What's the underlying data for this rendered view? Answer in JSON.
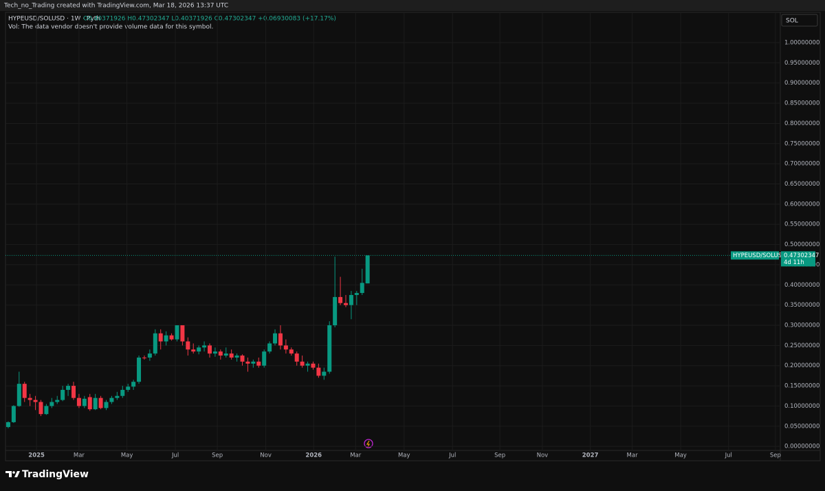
{
  "header": {
    "credit": "Tech_no_Trading created with TradingView.com, Mar 18, 2026 13:37 UTC",
    "symbol": "HYPEUSD/SOLUSD · 1W · Pyth",
    "ohlc": "O0.40371926 H0.47302347 L0.40371926 C0.47302347 +0.06930083 (+17.17%)",
    "volume_note": "Vol: The data vendor doesn't provide volume data for this symbol.",
    "currency_button": "SOL"
  },
  "footer": {
    "brand": "TradingView"
  },
  "chart_data": {
    "type": "candlestick",
    "up_color": "#089981",
    "down_color": "#f23645",
    "grid": true,
    "categories": [
      null,
      null,
      null,
      null,
      null,
      null,
      null,
      null,
      null,
      null,
      null,
      null,
      null,
      null,
      null,
      null,
      null,
      null,
      null,
      null,
      null,
      null,
      null,
      null,
      null,
      null,
      null,
      null,
      null,
      null,
      null,
      null,
      null,
      null,
      null,
      null,
      null,
      null,
      null,
      null,
      null,
      null,
      null,
      null,
      null,
      null,
      null,
      null,
      null,
      null,
      null,
      null,
      null,
      null,
      null,
      null,
      null,
      null,
      null,
      null,
      null,
      null,
      null,
      null,
      null,
      null,
      null
    ],
    "open": [
      0.048,
      0.06,
      0.1,
      0.155,
      0.12,
      0.115,
      0.11,
      0.08,
      0.1,
      0.11,
      0.115,
      0.14,
      0.15,
      0.12,
      0.1,
      0.122,
      0.092,
      0.12,
      0.095,
      0.11,
      0.12,
      0.125,
      0.14,
      0.148,
      0.16,
      0.22,
      0.22,
      0.23,
      0.28,
      0.26,
      0.275,
      0.265,
      0.3,
      0.26,
      0.24,
      0.235,
      0.245,
      0.25,
      0.23,
      0.235,
      0.225,
      0.23,
      0.22,
      0.225,
      0.21,
      0.205,
      0.21,
      0.2,
      0.235,
      0.255,
      0.28,
      0.25,
      0.24,
      0.23,
      0.21,
      0.2,
      0.205,
      0.195,
      0.175,
      0.185,
      0.3,
      0.37,
      0.355,
      0.35,
      0.375,
      0.38,
      0.40371926
    ],
    "high": [
      0.062,
      0.102,
      0.185,
      0.16,
      0.13,
      0.125,
      0.115,
      0.105,
      0.12,
      0.125,
      0.15,
      0.155,
      0.16,
      0.13,
      0.125,
      0.13,
      0.13,
      0.125,
      0.115,
      0.125,
      0.135,
      0.15,
      0.155,
      0.165,
      0.225,
      0.225,
      0.24,
      0.29,
      0.29,
      0.285,
      0.28,
      0.3,
      0.3,
      0.27,
      0.255,
      0.25,
      0.26,
      0.255,
      0.245,
      0.24,
      0.245,
      0.24,
      0.23,
      0.228,
      0.22,
      0.215,
      0.22,
      0.24,
      0.26,
      0.29,
      0.3,
      0.265,
      0.245,
      0.235,
      0.225,
      0.21,
      0.21,
      0.205,
      0.195,
      0.31,
      0.47,
      0.42,
      0.375,
      0.385,
      0.385,
      0.44,
      0.47302347
    ],
    "low": [
      0.045,
      0.058,
      0.098,
      0.11,
      0.1,
      0.09,
      0.075,
      0.078,
      0.095,
      0.105,
      0.112,
      0.125,
      0.115,
      0.095,
      0.095,
      0.088,
      0.09,
      0.092,
      0.09,
      0.105,
      0.115,
      0.12,
      0.135,
      0.14,
      0.155,
      0.215,
      0.212,
      0.225,
      0.24,
      0.25,
      0.262,
      0.26,
      0.25,
      0.225,
      0.23,
      0.228,
      0.235,
      0.22,
      0.222,
      0.215,
      0.22,
      0.215,
      0.21,
      0.2,
      0.185,
      0.195,
      0.195,
      0.195,
      0.23,
      0.25,
      0.24,
      0.23,
      0.225,
      0.2,
      0.195,
      0.185,
      0.19,
      0.17,
      0.165,
      0.18,
      0.295,
      0.35,
      0.345,
      0.315,
      0.35,
      0.375,
      0.40371926
    ],
    "close": [
      0.06,
      0.1,
      0.155,
      0.12,
      0.115,
      0.11,
      0.08,
      0.1,
      0.11,
      0.115,
      0.14,
      0.15,
      0.12,
      0.1,
      0.118,
      0.092,
      0.12,
      0.095,
      0.11,
      0.12,
      0.125,
      0.14,
      0.148,
      0.16,
      0.22,
      0.219,
      0.23,
      0.28,
      0.26,
      0.275,
      0.265,
      0.3,
      0.26,
      0.24,
      0.235,
      0.245,
      0.25,
      0.23,
      0.235,
      0.225,
      0.23,
      0.22,
      0.225,
      0.21,
      0.205,
      0.21,
      0.2,
      0.235,
      0.255,
      0.28,
      0.25,
      0.24,
      0.23,
      0.21,
      0.2,
      0.205,
      0.195,
      0.175,
      0.185,
      0.3,
      0.37,
      0.355,
      0.35,
      0.375,
      0.38,
      0.405,
      0.47302347
    ],
    "ylim": [
      -0.01,
      1.075
    ],
    "yticks": [
      {
        "value": 0,
        "label": "0.00000000"
      },
      {
        "value": 0.05,
        "label": "0.05000000"
      },
      {
        "value": 0.1,
        "label": "0.10000000"
      },
      {
        "value": 0.15,
        "label": "0.15000000"
      },
      {
        "value": 0.2,
        "label": "0.20000000"
      },
      {
        "value": 0.25,
        "label": "0.25000000"
      },
      {
        "value": 0.3,
        "label": "0.30000000"
      },
      {
        "value": 0.35,
        "label": "0.35000000"
      },
      {
        "value": 0.4,
        "label": "0.40000000"
      },
      {
        "value": 0.45,
        "label": "0.45000000"
      },
      {
        "value": 0.5,
        "label": "0.50000000"
      },
      {
        "value": 0.55,
        "label": "0.55000000"
      },
      {
        "value": 0.6,
        "label": "0.60000000"
      },
      {
        "value": 0.65,
        "label": "0.65000000"
      },
      {
        "value": 0.7,
        "label": "0.70000000"
      },
      {
        "value": 0.75,
        "label": "0.75000000"
      },
      {
        "value": 0.8,
        "label": "0.80000000"
      },
      {
        "value": 0.85,
        "label": "0.85000000"
      },
      {
        "value": 0.9,
        "label": "0.90000000"
      },
      {
        "value": 0.95,
        "label": "0.95000000"
      },
      {
        "value": 1,
        "label": "1.00000000"
      }
    ],
    "xlim": [
      -0.5,
      141.8
    ],
    "xticks": [
      {
        "value": 5.2,
        "label": "2025"
      },
      {
        "value": 13,
        "label": "Mar"
      },
      {
        "value": 21.8,
        "label": "May"
      },
      {
        "value": 30.7,
        "label": "Jul"
      },
      {
        "value": 38.4,
        "label": "Sep"
      },
      {
        "value": 47.3,
        "label": "Nov"
      },
      {
        "value": 56.1,
        "label": "2026"
      },
      {
        "value": 63.8,
        "label": "Mar"
      },
      {
        "value": 72.7,
        "label": "May"
      },
      {
        "value": 81.6,
        "label": "Jul"
      },
      {
        "value": 90.3,
        "label": "Sep"
      },
      {
        "value": 98.1,
        "label": "Nov"
      },
      {
        "value": 106.9,
        "label": "2027"
      },
      {
        "value": 114.6,
        "label": "Mar"
      },
      {
        "value": 123.5,
        "label": "May"
      },
      {
        "value": 132.3,
        "label": "Jul"
      },
      {
        "value": 140.9,
        "label": "Sep"
      }
    ],
    "price_line": {
      "value": 0.47302347,
      "label": "0.47302347",
      "name": "HYPEUSD/SOLUSD",
      "countdown": "4d 11h"
    }
  }
}
